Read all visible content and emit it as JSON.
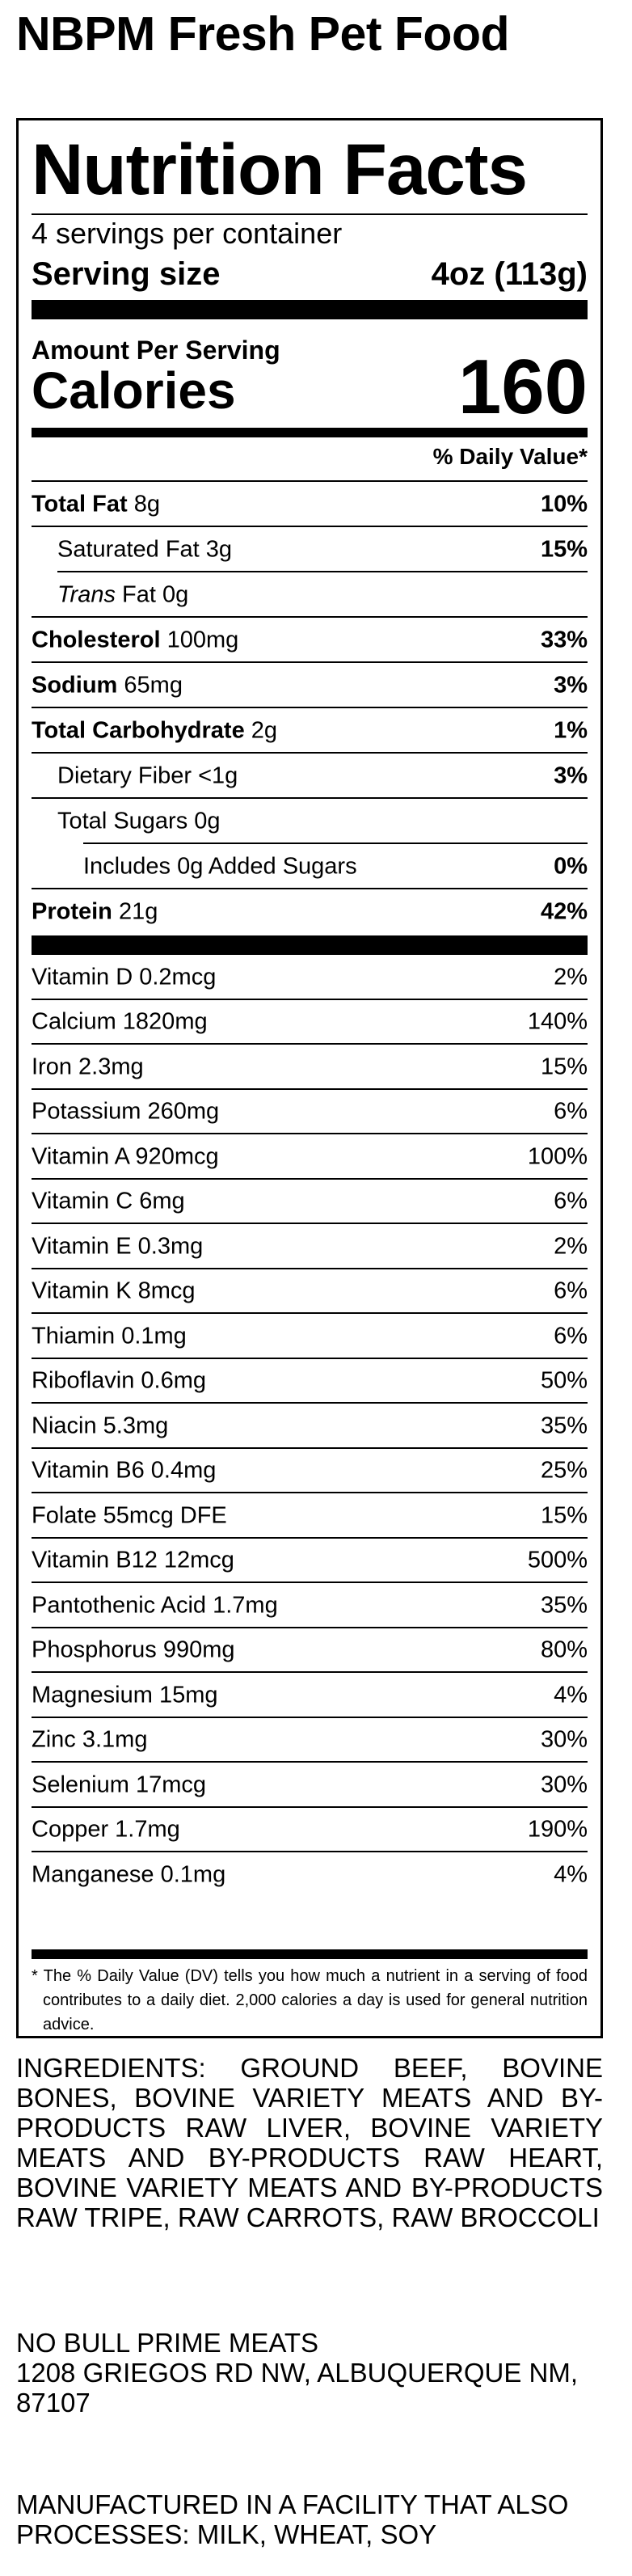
{
  "brand": "NBPM Fresh Pet Food",
  "label": {
    "title": "Nutrition Facts",
    "servings": "4 servings per container",
    "serving_size_label": "Serving size",
    "serving_size_value": "4oz (113g)",
    "amount_per_serving": "Amount Per Serving",
    "calories_label": "Calories",
    "calories_value": "160",
    "dv_header": "% Daily Value*"
  },
  "nutrients": [
    {
      "name": "Total Fat",
      "amount": "8g",
      "dv": "10%"
    },
    {
      "name": "Saturated Fat",
      "amount": "3g",
      "dv": "15%"
    },
    {
      "name": "Trans",
      "amount": "Fat 0g",
      "dv": ""
    },
    {
      "name": "Cholesterol",
      "amount": "100mg",
      "dv": "33%"
    },
    {
      "name": "Sodium",
      "amount": "65mg",
      "dv": "3%"
    },
    {
      "name": "Total Carbohydrate",
      "amount": "2g",
      "dv": "1%"
    },
    {
      "name": "Dietary Fiber",
      "amount": "<1g",
      "dv": "3%"
    },
    {
      "name": "Total Sugars",
      "amount": "0g",
      "dv": ""
    },
    {
      "name": "Includes 0g Added Sugars",
      "amount": "",
      "dv": "0%"
    },
    {
      "name": "Protein",
      "amount": "21g",
      "dv": "42%"
    }
  ],
  "vitamins": [
    {
      "name": "Vitamin D 0.2mcg",
      "dv": "2%"
    },
    {
      "name": "Calcium 1820mg",
      "dv": "140%"
    },
    {
      "name": "Iron 2.3mg",
      "dv": "15%"
    },
    {
      "name": "Potassium 260mg",
      "dv": "6%"
    },
    {
      "name": "Vitamin A 920mcg",
      "dv": "100%"
    },
    {
      "name": "Vitamin C 6mg",
      "dv": "6%"
    },
    {
      "name": "Vitamin E 0.3mg",
      "dv": "2%"
    },
    {
      "name": "Vitamin K 8mcg",
      "dv": "6%"
    },
    {
      "name": "Thiamin 0.1mg",
      "dv": "6%"
    },
    {
      "name": "Riboflavin 0.6mg",
      "dv": "50%"
    },
    {
      "name": "Niacin 5.3mg",
      "dv": "35%"
    },
    {
      "name": "Vitamin B6 0.4mg",
      "dv": "25%"
    },
    {
      "name": "Folate 55mcg DFE",
      "dv": "15%"
    },
    {
      "name": "Vitamin B12 12mcg",
      "dv": "500%"
    },
    {
      "name": "Pantothenic Acid 1.7mg",
      "dv": "35%"
    },
    {
      "name": "Phosphorus 990mg",
      "dv": "80%"
    },
    {
      "name": "Magnesium 15mg",
      "dv": "4%"
    },
    {
      "name": "Zinc 3.1mg",
      "dv": "30%"
    },
    {
      "name": "Selenium 17mcg",
      "dv": "30%"
    },
    {
      "name": "Copper 1.7mg",
      "dv": "190%"
    },
    {
      "name": "Manganese 0.1mg",
      "dv": "4%"
    }
  ],
  "footnote": {
    "star": "*",
    "text": "The % Daily Value (DV) tells you how much a nutrient in a serving of food contributes to a daily diet. 2,000 calories a day is used for general nutrition advice."
  },
  "ingredients": "INGREDIENTS: GROUND BEEF, BOVINE BONES, BOVINE VARIETY MEATS AND BY-PRODUCTS RAW LIVER, BOVINE VARIETY MEATS AND BY-PRODUCTS RAW HEART, BOVINE VARIETY MEATS AND BY-PRODUCTS RAW TRIPE, RAW CARROTS, RAW BROCCOLI",
  "manufacturer": {
    "name": "NO BULL PRIME MEATS",
    "address": "1208 GRIEGOS RD NW, ALBUQUERQUE NM, 87107"
  },
  "allergen": "MANUFACTURED IN A FACILITY THAT ALSO PROCESSES: MILK, WHEAT, SOY"
}
